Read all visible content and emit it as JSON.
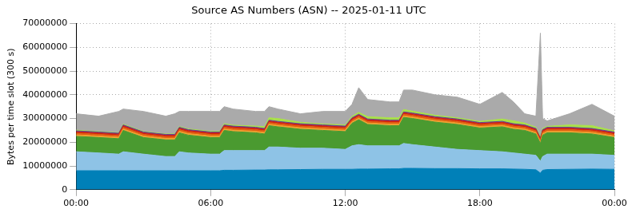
{
  "chart_data": {
    "type": "area",
    "title": "Source AS Numbers (ASN) -- 2025-01-11 UTC",
    "y_label": "Bytes per time slot (300 s)",
    "stacked": true,
    "grid": true,
    "x": [
      0,
      1,
      1.9,
      2.1,
      3,
      4,
      4.4,
      4.6,
      5,
      6,
      6.4,
      6.6,
      7,
      8,
      8.4,
      8.6,
      9,
      10,
      11,
      12,
      12.3,
      12.6,
      13,
      14,
      14.4,
      14.6,
      15,
      16,
      17,
      18,
      19,
      19.5,
      20,
      20.5,
      20.7,
      20.8,
      21,
      22,
      23,
      24
    ],
    "xlim": [
      0,
      24
    ],
    "xticks": [
      {
        "value": 0,
        "label": "00:00"
      },
      {
        "value": 6,
        "label": "06:00"
      },
      {
        "value": 12,
        "label": "12:00"
      },
      {
        "value": 18,
        "label": "18:00"
      },
      {
        "value": 24,
        "label": "00:00"
      }
    ],
    "ylim": [
      0,
      70000000
    ],
    "yticks": [
      0,
      10000000,
      20000000,
      30000000,
      40000000,
      50000000,
      60000000,
      70000000
    ],
    "series": [
      {
        "color": "#0080b8",
        "values": [
          8000000,
          8000000,
          8000000,
          8000000,
          8000000,
          8000000,
          8000000,
          8000000,
          8000000,
          8000000,
          8000000,
          8200000,
          8200000,
          8300000,
          8300000,
          8400000,
          8400000,
          8500000,
          8600000,
          8600000,
          8600000,
          8700000,
          8700000,
          8800000,
          8800000,
          9000000,
          9000000,
          8900000,
          8900000,
          8800000,
          8800000,
          8700000,
          8600000,
          8400000,
          7000000,
          8200000,
          8500000,
          8600000,
          8700000,
          8600000
        ]
      },
      {
        "color": "#8ec3e6",
        "values": [
          8000000,
          7500000,
          7000000,
          8000000,
          7000000,
          6000000,
          6000000,
          8000000,
          7500000,
          7000000,
          7000000,
          8300000,
          8300000,
          8200000,
          8200000,
          9600000,
          9600000,
          9000000,
          8900000,
          8400000,
          9900000,
          10300000,
          9800000,
          9700000,
          9700000,
          10500000,
          10000000,
          9100000,
          8100000,
          7700000,
          7200000,
          6800000,
          6400000,
          6100000,
          5000000,
          5800000,
          6500000,
          6400000,
          6300000,
          5900000
        ]
      },
      {
        "color": "#4a9a30",
        "values": [
          6500000,
          6500000,
          6500000,
          9000000,
          7000000,
          7000000,
          7000000,
          8000000,
          7500000,
          7000000,
          7000000,
          8500000,
          8000000,
          7500000,
          7000000,
          9000000,
          8500000,
          8000000,
          7500000,
          7500000,
          9500000,
          10500000,
          9000000,
          8500000,
          8500000,
          11000000,
          11000000,
          10500000,
          10500000,
          9500000,
          10500000,
          10000000,
          10000000,
          9000000,
          7500000,
          9000000,
          9000000,
          9000000,
          8500000,
          7500000
        ]
      },
      {
        "color": "#f0a030",
        "values": [
          600000,
          600000,
          600000,
          600000,
          600000,
          600000,
          600000,
          600000,
          600000,
          600000,
          600000,
          600000,
          600000,
          600000,
          600000,
          600000,
          600000,
          600000,
          600000,
          600000,
          600000,
          600000,
          600000,
          600000,
          600000,
          600000,
          600000,
          600000,
          600000,
          600000,
          600000,
          600000,
          600000,
          600000,
          600000,
          600000,
          600000,
          600000,
          600000,
          600000
        ]
      },
      {
        "color": "#e06010",
        "values": [
          700000,
          700000,
          700000,
          700000,
          700000,
          700000,
          700000,
          700000,
          700000,
          700000,
          700000,
          700000,
          700000,
          700000,
          700000,
          700000,
          700000,
          700000,
          700000,
          700000,
          700000,
          700000,
          700000,
          700000,
          700000,
          700000,
          700000,
          700000,
          700000,
          700000,
          700000,
          700000,
          700000,
          700000,
          700000,
          700000,
          700000,
          700000,
          700000,
          700000
        ]
      },
      {
        "color": "#d02010",
        "values": [
          600000,
          600000,
          600000,
          600000,
          600000,
          600000,
          600000,
          600000,
          600000,
          600000,
          600000,
          600000,
          600000,
          600000,
          600000,
          600000,
          600000,
          600000,
          600000,
          600000,
          600000,
          600000,
          600000,
          600000,
          600000,
          600000,
          600000,
          600000,
          600000,
          600000,
          600000,
          600000,
          600000,
          600000,
          600000,
          600000,
          600000,
          600000,
          600000,
          600000
        ]
      },
      {
        "color": "#604090",
        "values": [
          400000,
          400000,
          400000,
          400000,
          400000,
          400000,
          400000,
          400000,
          400000,
          400000,
          400000,
          400000,
          400000,
          400000,
          400000,
          400000,
          400000,
          400000,
          400000,
          400000,
          400000,
          400000,
          400000,
          400000,
          400000,
          400000,
          400000,
          400000,
          400000,
          400000,
          400000,
          400000,
          400000,
          400000,
          400000,
          400000,
          400000,
          400000,
          400000,
          400000
        ]
      },
      {
        "color": "#a8e048",
        "values": [
          300000,
          200000,
          200000,
          300000,
          200000,
          200000,
          200000,
          300000,
          300000,
          300000,
          300000,
          500000,
          400000,
          500000,
          800000,
          1000000,
          1200000,
          600000,
          400000,
          500000,
          600000,
          800000,
          1000000,
          1000000,
          1000000,
          1000000,
          800000,
          600000,
          500000,
          500000,
          1000000,
          1200000,
          800000,
          500000,
          500000,
          500000,
          400000,
          1000000,
          1200000,
          500000
        ]
      },
      {
        "color": "#aaaaaa",
        "values": [
          6900000,
          6500000,
          9000000,
          6400000,
          8500000,
          7500000,
          8500000,
          6400000,
          7400000,
          8400000,
          8400000,
          7200000,
          6800000,
          6200000,
          6400000,
          4700000,
          4000000,
          3600000,
          5300000,
          5700000,
          5100000,
          10400000,
          7200000,
          6700000,
          6700000,
          8200000,
          8900000,
          8600000,
          8700000,
          7200000,
          11200000,
          8000000,
          3900000,
          4700000,
          43700000,
          4200000,
          2300000,
          4700000,
          9000000,
          6200000
        ]
      }
    ]
  }
}
